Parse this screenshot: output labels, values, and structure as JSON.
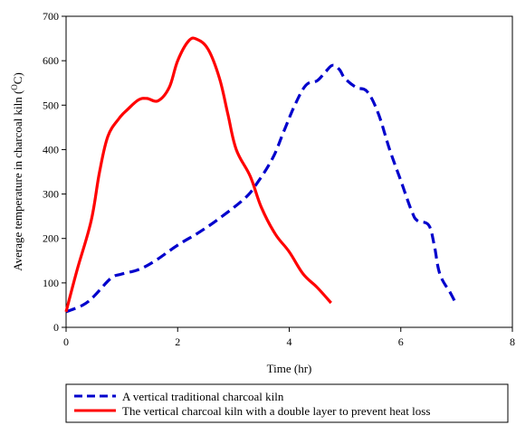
{
  "colors": {
    "traditional": "#0000cc",
    "double_layer": "#ff0000"
  },
  "chart_data": {
    "type": "line",
    "xlabel": "Time (hr)",
    "ylabel_prefix": "Average temperature in charcoal kiln (",
    "ylabel_sup": "O",
    "ylabel_suffix": "C)",
    "xlim": [
      0,
      8
    ],
    "ylim": [
      0,
      700
    ],
    "xticks": [
      0,
      2,
      4,
      6,
      8
    ],
    "yticks": [
      0,
      100,
      200,
      300,
      400,
      500,
      600,
      700
    ],
    "grid": false,
    "legend_position": "bottom",
    "series": [
      {
        "name": "A vertical traditional charcoal kiln",
        "style": "dashed",
        "color": "#0000cc",
        "points": [
          [
            0,
            35
          ],
          [
            0.3,
            50
          ],
          [
            0.5,
            70
          ],
          [
            0.8,
            110
          ],
          [
            1.0,
            120
          ],
          [
            1.3,
            130
          ],
          [
            1.6,
            150
          ],
          [
            2.0,
            185
          ],
          [
            2.4,
            215
          ],
          [
            2.8,
            250
          ],
          [
            3.2,
            290
          ],
          [
            3.4,
            320
          ],
          [
            3.7,
            380
          ],
          [
            3.9,
            440
          ],
          [
            4.1,
            500
          ],
          [
            4.3,
            545
          ],
          [
            4.5,
            555
          ],
          [
            4.65,
            575
          ],
          [
            4.78,
            590
          ],
          [
            4.9,
            580
          ],
          [
            5.0,
            560
          ],
          [
            5.2,
            540
          ],
          [
            5.4,
            530
          ],
          [
            5.6,
            480
          ],
          [
            5.8,
            400
          ],
          [
            6.0,
            330
          ],
          [
            6.2,
            260
          ],
          [
            6.3,
            240
          ],
          [
            6.5,
            230
          ],
          [
            6.6,
            185
          ],
          [
            6.7,
            120
          ],
          [
            6.9,
            75
          ],
          [
            7.0,
            50
          ]
        ]
      },
      {
        "name": "The vertical charcoal kiln with a double layer to prevent heat loss",
        "style": "solid",
        "color": "#ff0000",
        "points": [
          [
            0,
            35
          ],
          [
            0.2,
            130
          ],
          [
            0.45,
            240
          ],
          [
            0.6,
            350
          ],
          [
            0.75,
            430
          ],
          [
            0.95,
            470
          ],
          [
            1.1,
            490
          ],
          [
            1.3,
            512
          ],
          [
            1.45,
            515
          ],
          [
            1.65,
            510
          ],
          [
            1.85,
            540
          ],
          [
            2.0,
            600
          ],
          [
            2.2,
            645
          ],
          [
            2.35,
            648
          ],
          [
            2.55,
            625
          ],
          [
            2.75,
            560
          ],
          [
            2.9,
            480
          ],
          [
            3.05,
            400
          ],
          [
            3.3,
            340
          ],
          [
            3.5,
            270
          ],
          [
            3.75,
            210
          ],
          [
            4.0,
            170
          ],
          [
            4.25,
            120
          ],
          [
            4.5,
            90
          ],
          [
            4.75,
            55
          ]
        ]
      }
    ]
  }
}
